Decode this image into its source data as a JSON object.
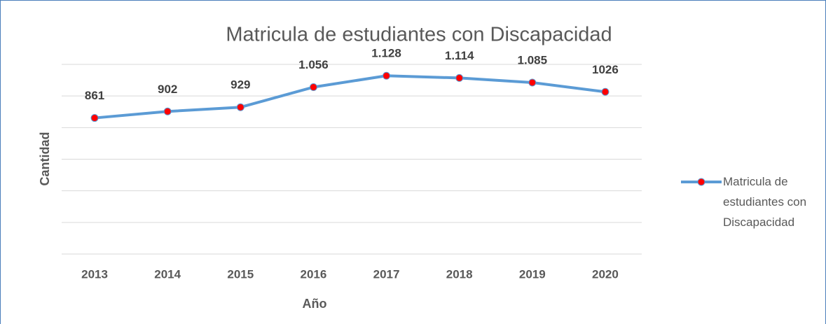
{
  "chart_data": {
    "type": "line",
    "title": "Matricula de estudiantes con Discapacidad",
    "x_label": "Año",
    "y_label": "Cantidad",
    "categories": [
      "2013",
      "2014",
      "2015",
      "2016",
      "2017",
      "2018",
      "2019",
      "2020"
    ],
    "series": [
      {
        "name": "Matricula de estudiantes con Discapacidad",
        "color": "#5b9bd5",
        "marker_color": "#ff0000",
        "values": [
          861,
          902,
          929,
          1056,
          1128,
          1114,
          1085,
          1026
        ],
        "value_labels": [
          "861",
          "902",
          "929",
          "1.056",
          "1.128",
          "1.114",
          "1.085",
          "1026"
        ]
      }
    ],
    "ylim": [
      0,
      1200
    ],
    "yticks": [
      0,
      200,
      400,
      600,
      800,
      1000,
      1200
    ],
    "grid": true,
    "legend": "right"
  }
}
